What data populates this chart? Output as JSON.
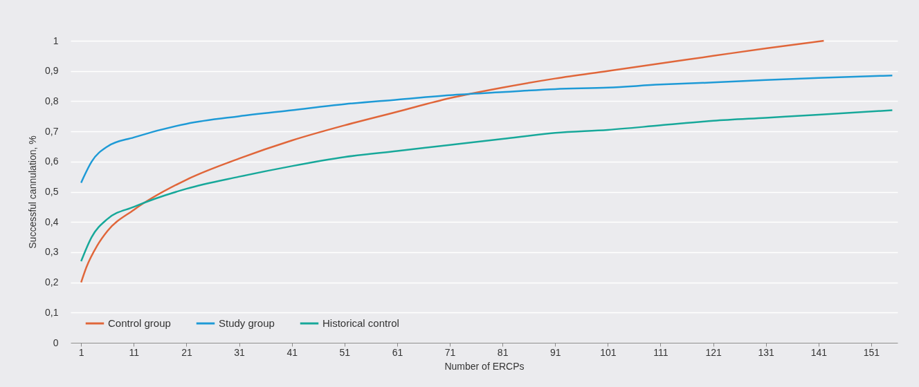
{
  "chart_data": {
    "type": "line",
    "xlabel": "Number of ERCPs",
    "ylabel": "Successful cannulation, %",
    "xlim": [
      -1,
      156
    ],
    "xticks": [
      1,
      11,
      21,
      31,
      41,
      51,
      61,
      71,
      81,
      91,
      101,
      111,
      121,
      131,
      141,
      151
    ],
    "ylim": [
      0,
      1
    ],
    "yticks": [
      0,
      {
        "value": 0.1,
        "label": "0,1"
      },
      {
        "value": 0.2,
        "label": "0,2"
      },
      {
        "value": 0.3,
        "label": "0,3"
      },
      {
        "value": 0.4,
        "label": "0,4"
      },
      {
        "value": 0.5,
        "label": "0,5"
      },
      {
        "value": 0.6,
        "label": "0,6"
      },
      {
        "value": 0.7,
        "label": "0,7"
      },
      {
        "value": 0.8,
        "label": "0,8"
      },
      {
        "value": 0.9,
        "label": "0,9"
      },
      1
    ],
    "grid": "y",
    "legend": "bottom left",
    "marker": "none",
    "line_style": "solid",
    "series": [
      {
        "name": "Control group",
        "color": "#e0663a",
        "x": [
          1,
          2,
          4,
          6,
          11,
          21,
          31,
          41,
          51,
          61,
          71,
          81,
          91,
          101,
          111,
          121,
          131,
          142
        ],
        "values": [
          0.2,
          0.25,
          0.32,
          0.37,
          0.44,
          0.54,
          0.61,
          0.67,
          0.72,
          0.765,
          0.81,
          0.845,
          0.875,
          0.9,
          0.925,
          0.95,
          0.975,
          1.0
        ]
      },
      {
        "name": "Study group",
        "color": "#1e9ad6",
        "x": [
          1,
          3,
          6,
          11,
          21,
          31,
          41,
          51,
          61,
          71,
          81,
          91,
          101,
          111,
          121,
          131,
          141,
          155
        ],
        "values": [
          0.53,
          0.6,
          0.65,
          0.68,
          0.725,
          0.75,
          0.77,
          0.79,
          0.805,
          0.82,
          0.83,
          0.84,
          0.845,
          0.855,
          0.862,
          0.87,
          0.877,
          0.885
        ]
      },
      {
        "name": "Historical control",
        "color": "#17a89a",
        "x": [
          1,
          3,
          6,
          11,
          21,
          31,
          41,
          51,
          61,
          71,
          81,
          91,
          101,
          111,
          121,
          131,
          141,
          155
        ],
        "values": [
          0.27,
          0.35,
          0.41,
          0.45,
          0.51,
          0.55,
          0.585,
          0.615,
          0.635,
          0.655,
          0.675,
          0.695,
          0.705,
          0.72,
          0.735,
          0.745,
          0.755,
          0.77
        ]
      }
    ]
  }
}
